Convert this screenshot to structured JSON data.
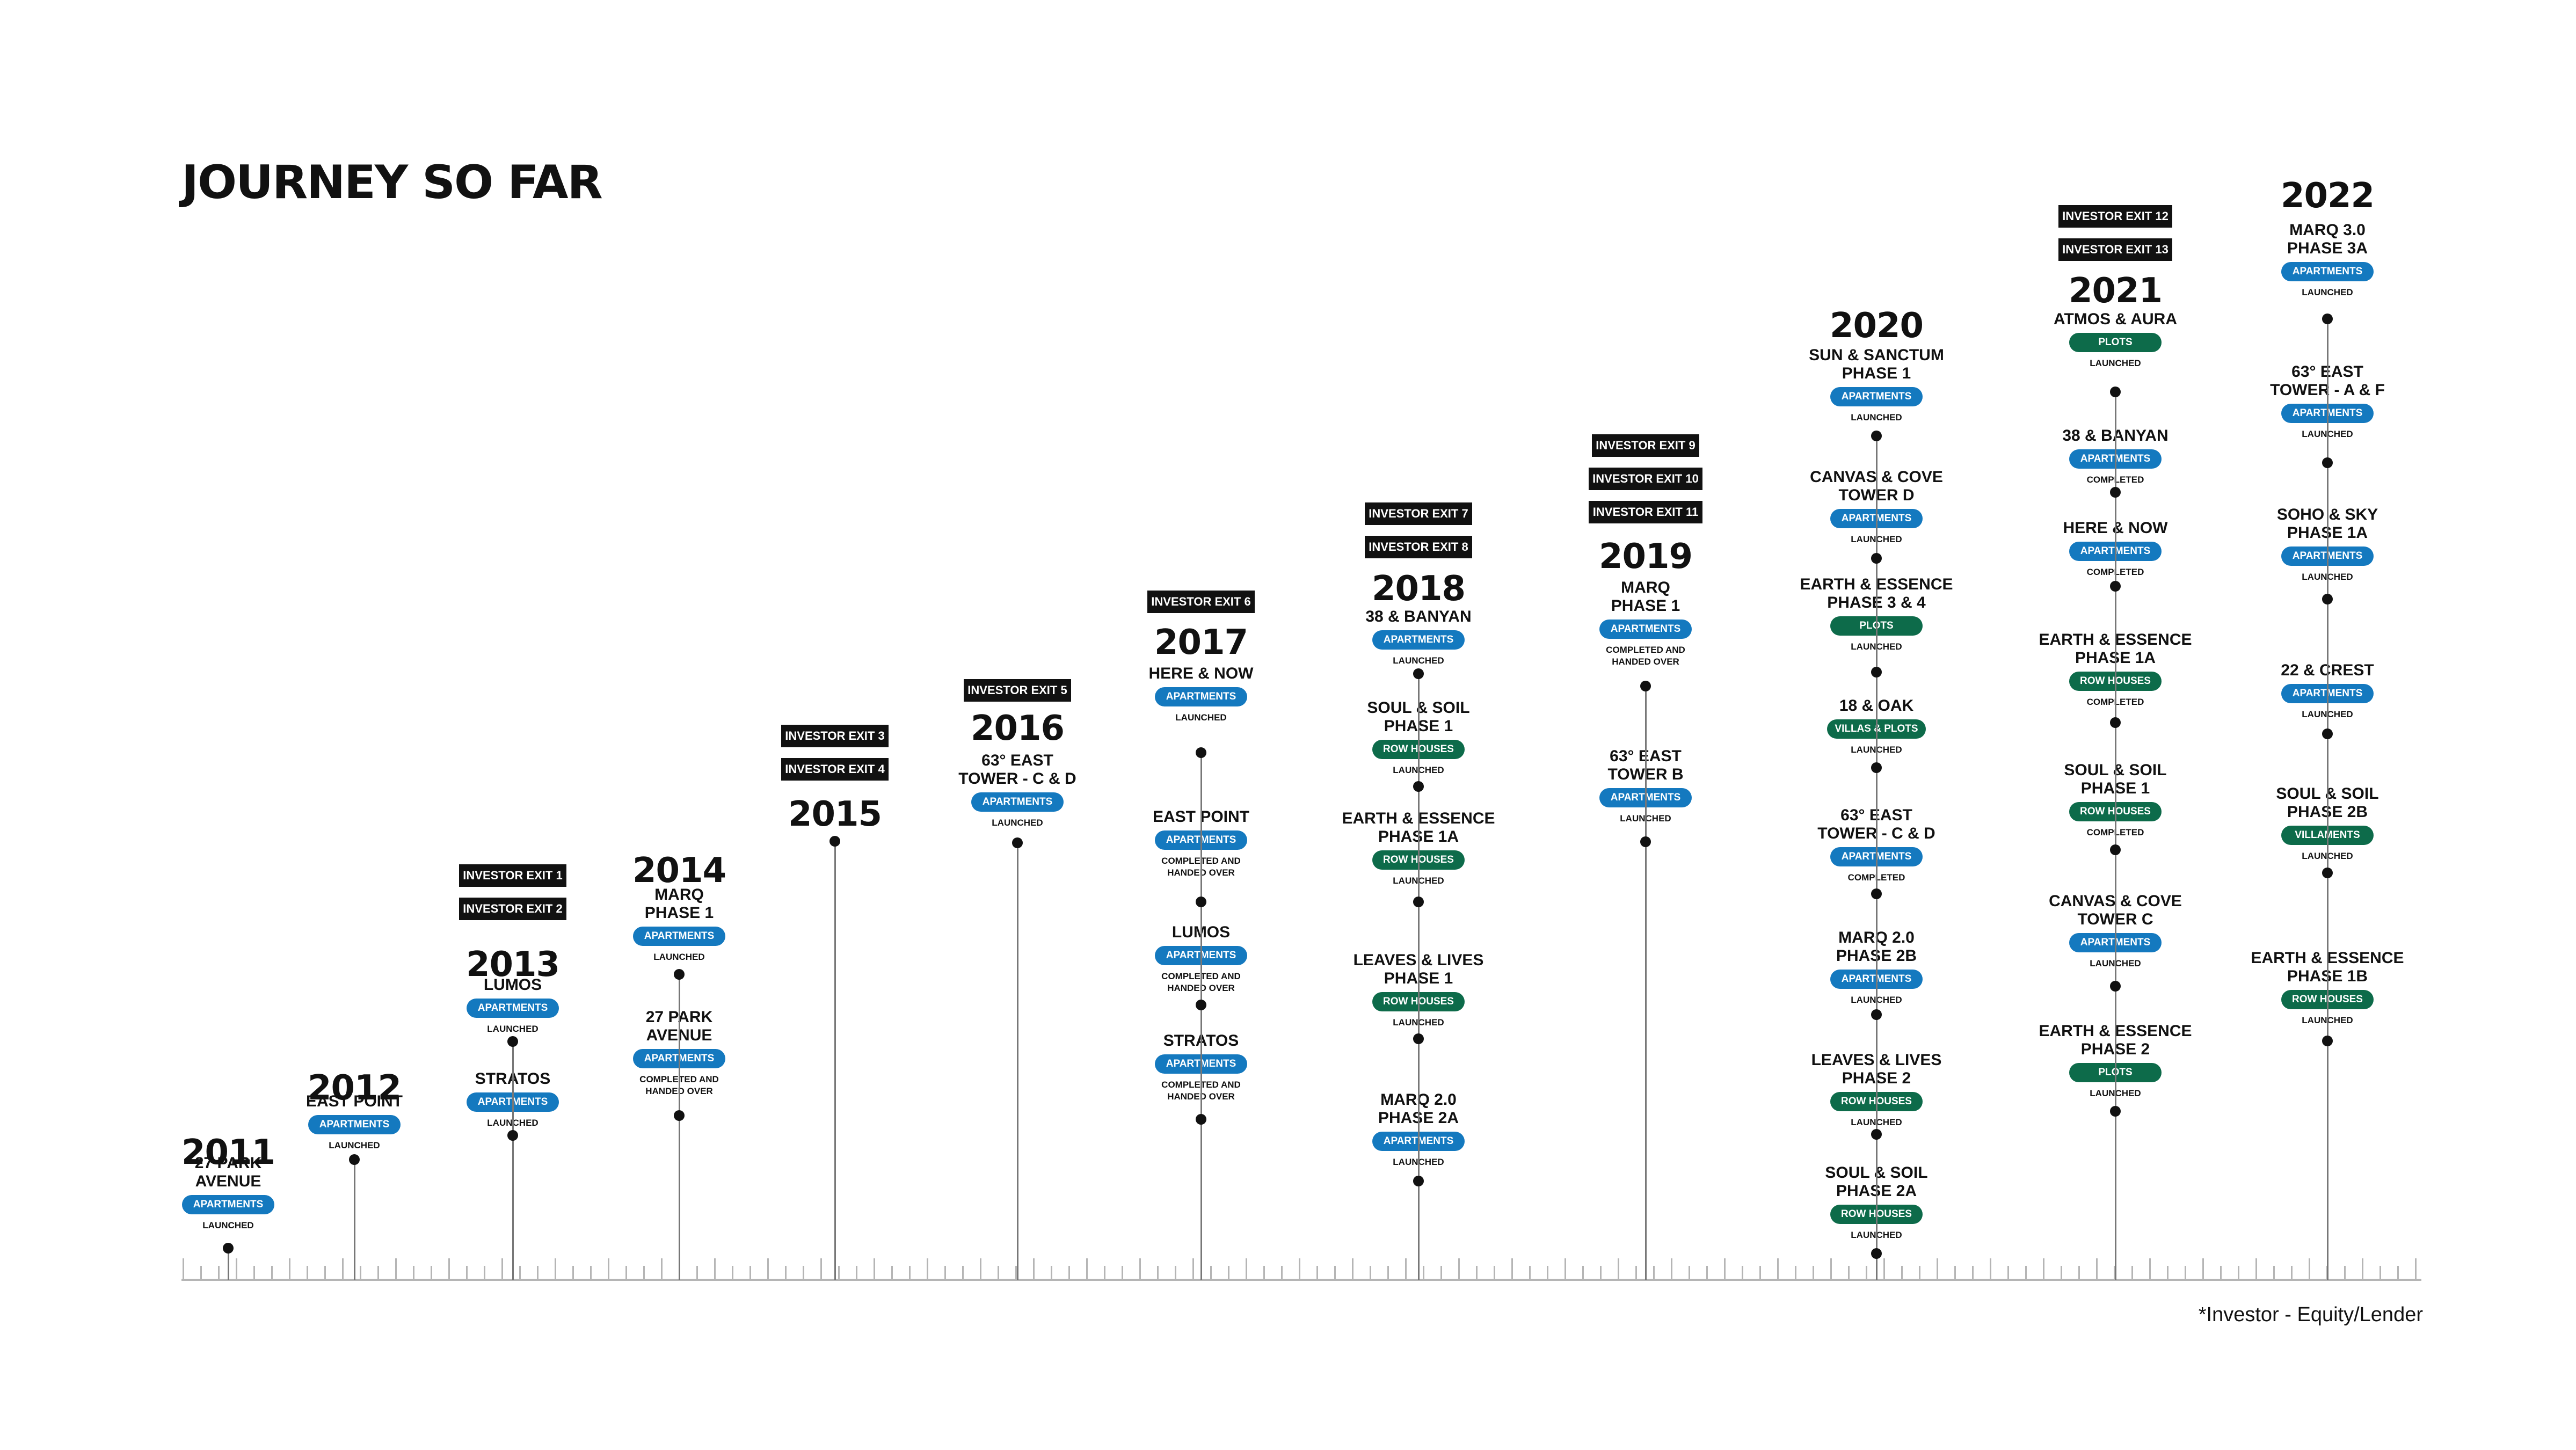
{
  "title": "JOURNEY SO  FAR",
  "footnote": "*Investor - Equity/Lender",
  "colors": {
    "apartments": "#1479bf",
    "green": "#0d6b4a",
    "exit": "#111111",
    "axis": "#b5b5b5"
  },
  "years": [
    {
      "year": "2011",
      "exits": [],
      "projects": [
        {
          "name": "27 PARK\nAVENUE",
          "tag": "APARTMENTS",
          "status": "LAUNCHED"
        }
      ]
    },
    {
      "year": "2012",
      "exits": [],
      "projects": [
        {
          "name": "EAST POINT",
          "tag": "APARTMENTS",
          "status": "LAUNCHED"
        }
      ]
    },
    {
      "year": "2013",
      "exits": [
        "INVESTOR EXIT 1",
        "INVESTOR EXIT 2"
      ],
      "projects": [
        {
          "name": "LUMOS",
          "tag": "APARTMENTS",
          "status": "LAUNCHED"
        },
        {
          "name": "STRATOS",
          "tag": "APARTMENTS",
          "status": "LAUNCHED"
        }
      ]
    },
    {
      "year": "2014",
      "exits": [],
      "projects": [
        {
          "name": "MARQ\nPHASE 1",
          "tag": "APARTMENTS",
          "status": "LAUNCHED"
        },
        {
          "name": "27 PARK\nAVENUE",
          "tag": "APARTMENTS",
          "status": "COMPLETED AND\nHANDED OVER"
        }
      ]
    },
    {
      "year": "2015",
      "exits": [
        "INVESTOR EXIT 3",
        "INVESTOR EXIT 4"
      ],
      "projects": []
    },
    {
      "year": "2016",
      "exits": [
        "INVESTOR EXIT 5"
      ],
      "projects": [
        {
          "name": "63° EAST\nTOWER - C & D",
          "tag": "APARTMENTS",
          "status": "LAUNCHED"
        }
      ]
    },
    {
      "year": "2017",
      "exits": [
        "INVESTOR EXIT 6"
      ],
      "projects": [
        {
          "name": "HERE & NOW",
          "tag": "APARTMENTS",
          "status": "LAUNCHED"
        },
        {
          "name": "EAST POINT",
          "tag": "APARTMENTS",
          "status": "COMPLETED AND\nHANDED OVER"
        },
        {
          "name": "LUMOS",
          "tag": "APARTMENTS",
          "status": "COMPLETED AND\nHANDED OVER"
        },
        {
          "name": "STRATOS",
          "tag": "APARTMENTS",
          "status": "COMPLETED AND\nHANDED OVER"
        }
      ]
    },
    {
      "year": "2018",
      "exits": [
        "INVESTOR EXIT 7",
        "INVESTOR EXIT 8"
      ],
      "projects": [
        {
          "name": "38 & BANYAN",
          "tag": "APARTMENTS",
          "status": "LAUNCHED"
        },
        {
          "name": "SOUL & SOIL\nPHASE 1",
          "tag": "ROW HOUSES",
          "status": "LAUNCHED"
        },
        {
          "name": "EARTH & ESSENCE\nPHASE 1A",
          "tag": "ROW HOUSES",
          "status": "LAUNCHED"
        },
        {
          "name": "LEAVES & LIVES\nPHASE 1",
          "tag": "ROW HOUSES",
          "status": "LAUNCHED"
        },
        {
          "name": "MARQ 2.0\nPHASE 2A",
          "tag": "APARTMENTS",
          "status": "LAUNCHED"
        }
      ]
    },
    {
      "year": "2019",
      "exits": [
        "INVESTOR EXIT 9",
        "INVESTOR EXIT 10",
        "INVESTOR EXIT 11"
      ],
      "projects": [
        {
          "name": "MARQ\nPHASE 1",
          "tag": "APARTMENTS",
          "status": "COMPLETED AND\nHANDED OVER"
        },
        {
          "name": "63° EAST\nTOWER B",
          "tag": "APARTMENTS",
          "status": "LAUNCHED"
        }
      ]
    },
    {
      "year": "2020",
      "exits": [],
      "projects": [
        {
          "name": "SUN & SANCTUM\nPHASE 1",
          "tag": "APARTMENTS",
          "status": "LAUNCHED"
        },
        {
          "name": "CANVAS & COVE\nTOWER D",
          "tag": "APARTMENTS",
          "status": "LAUNCHED"
        },
        {
          "name": "EARTH & ESSENCE\nPHASE 3 & 4",
          "tag": "PLOTS",
          "status": "LAUNCHED"
        },
        {
          "name": "18 & OAK",
          "tag": "VILLAS & PLOTS",
          "status": "LAUNCHED"
        },
        {
          "name": "63° EAST\nTOWER - C & D",
          "tag": "APARTMENTS",
          "status": "COMPLETED"
        },
        {
          "name": "MARQ 2.0\nPHASE 2B",
          "tag": "APARTMENTS",
          "status": "LAUNCHED"
        },
        {
          "name": "LEAVES & LIVES\nPHASE 2",
          "tag": "ROW HOUSES",
          "status": "LAUNCHED"
        },
        {
          "name": "SOUL & SOIL\nPHASE 2A",
          "tag": "ROW HOUSES",
          "status": "LAUNCHED"
        }
      ]
    },
    {
      "year": "2021",
      "exits": [
        "INVESTOR EXIT 12",
        "INVESTOR EXIT 13"
      ],
      "projects": [
        {
          "name": "ATMOS & AURA",
          "tag": "PLOTS",
          "status": "LAUNCHED"
        },
        {
          "name": "38 & BANYAN",
          "tag": "APARTMENTS",
          "status": "COMPLETED"
        },
        {
          "name": "HERE & NOW",
          "tag": "APARTMENTS",
          "status": "COMPLETED"
        },
        {
          "name": "EARTH & ESSENCE\nPHASE 1A",
          "tag": "ROW HOUSES",
          "status": "COMPLETED"
        },
        {
          "name": "SOUL & SOIL\nPHASE 1",
          "tag": "ROW HOUSES",
          "status": "COMPLETED"
        },
        {
          "name": "CANVAS & COVE\nTOWER C",
          "tag": "APARTMENTS",
          "status": "LAUNCHED"
        },
        {
          "name": "EARTH & ESSENCE\nPHASE 2",
          "tag": "PLOTS",
          "status": "LAUNCHED"
        }
      ]
    },
    {
      "year": "2022",
      "exits": [],
      "projects": [
        {
          "name": "MARQ 3.0\nPHASE 3A",
          "tag": "APARTMENTS",
          "status": "LAUNCHED"
        },
        {
          "name": "63° EAST\nTOWER - A & F",
          "tag": "APARTMENTS",
          "status": "LAUNCHED"
        },
        {
          "name": "SOHO & SKY\nPHASE 1A",
          "tag": "APARTMENTS",
          "status": "LAUNCHED"
        },
        {
          "name": "22 & CREST",
          "tag": "APARTMENTS",
          "status": "LAUNCHED"
        },
        {
          "name": "SOUL & SOIL\nPHASE 2B",
          "tag": "VILLAMENTS",
          "status": "LAUNCHED"
        },
        {
          "name": "EARTH & ESSENCE\nPHASE 1B",
          "tag": "ROW HOUSES",
          "status": "LAUNCHED"
        }
      ]
    }
  ]
}
